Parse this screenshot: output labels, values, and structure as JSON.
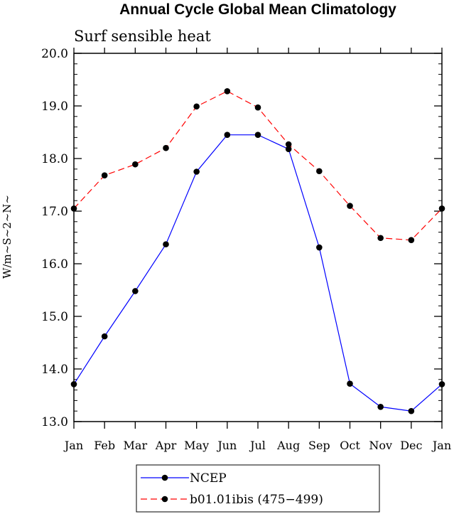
{
  "chart_data": {
    "type": "line",
    "title": "Annual Cycle Global Mean Climatology",
    "subtitle": "Surf sensible heat",
    "xlabel": "",
    "ylabel": "W/m~S~2~N~",
    "categories": [
      "Jan",
      "Feb",
      "Mar",
      "Apr",
      "May",
      "Jun",
      "Jul",
      "Aug",
      "Sep",
      "Oct",
      "Nov",
      "Dec",
      "Jan"
    ],
    "ylim": [
      13.0,
      20.0
    ],
    "yticks": [
      "13.0",
      "14.0",
      "15.0",
      "16.0",
      "17.0",
      "18.0",
      "19.0",
      "20.0"
    ],
    "legend_position": "bottom",
    "series": [
      {
        "name": "NCEP",
        "color": "#0000ff",
        "dash": "solid",
        "values": [
          13.71,
          14.62,
          15.48,
          16.37,
          17.75,
          18.45,
          18.45,
          18.18,
          16.31,
          13.72,
          13.28,
          13.2,
          13.71
        ]
      },
      {
        "name": "b01.01ibis (475−499)",
        "color": "#ff0000",
        "dash": "dashed",
        "values": [
          17.05,
          17.68,
          17.89,
          18.2,
          18.99,
          19.28,
          18.97,
          18.27,
          17.76,
          17.1,
          16.49,
          16.45,
          17.05
        ]
      }
    ]
  }
}
